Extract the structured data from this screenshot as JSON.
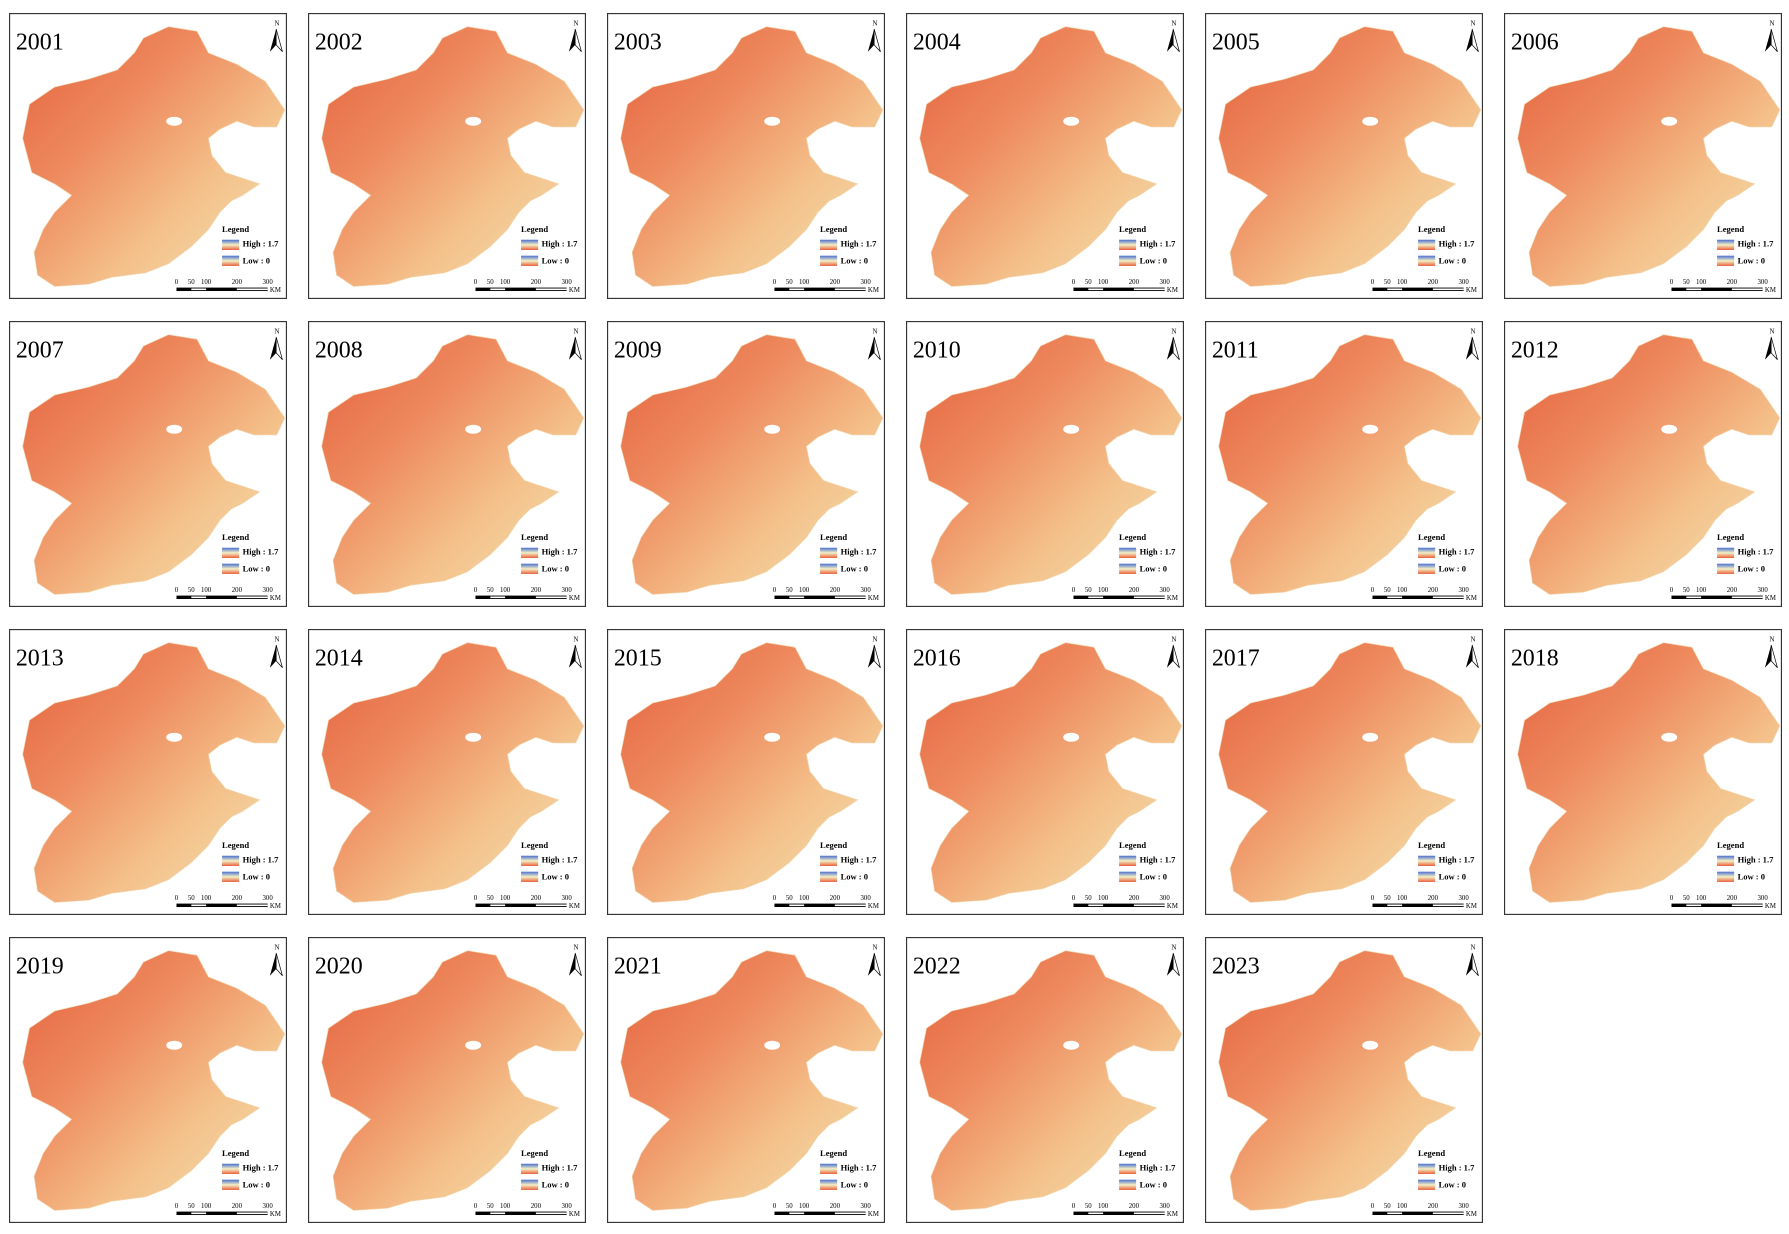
{
  "panels": [
    {
      "title": "2001"
    },
    {
      "title": "2002"
    },
    {
      "title": "2003"
    },
    {
      "title": "2004"
    },
    {
      "title": "2005"
    },
    {
      "title": "2006"
    },
    {
      "title": "2007"
    },
    {
      "title": "2008"
    },
    {
      "title": "2009"
    },
    {
      "title": "2010"
    },
    {
      "title": "2011"
    },
    {
      "title": "2012"
    },
    {
      "title": "2013"
    },
    {
      "title": "2014"
    },
    {
      "title": "2015"
    },
    {
      "title": "2016"
    },
    {
      "title": "2017"
    },
    {
      "title": "2018"
    },
    {
      "title": "2019"
    },
    {
      "title": "2020"
    },
    {
      "title": "2021"
    },
    {
      "title": "2022"
    },
    {
      "title": "2023"
    }
  ],
  "north": "N",
  "legend": {
    "title": "Legend",
    "high": "High : 1.7",
    "low": "Low : 0"
  },
  "scale_bar": {
    "labels": [
      "0",
      "50",
      "100",
      "200",
      "300"
    ],
    "unit": "KM"
  }
}
